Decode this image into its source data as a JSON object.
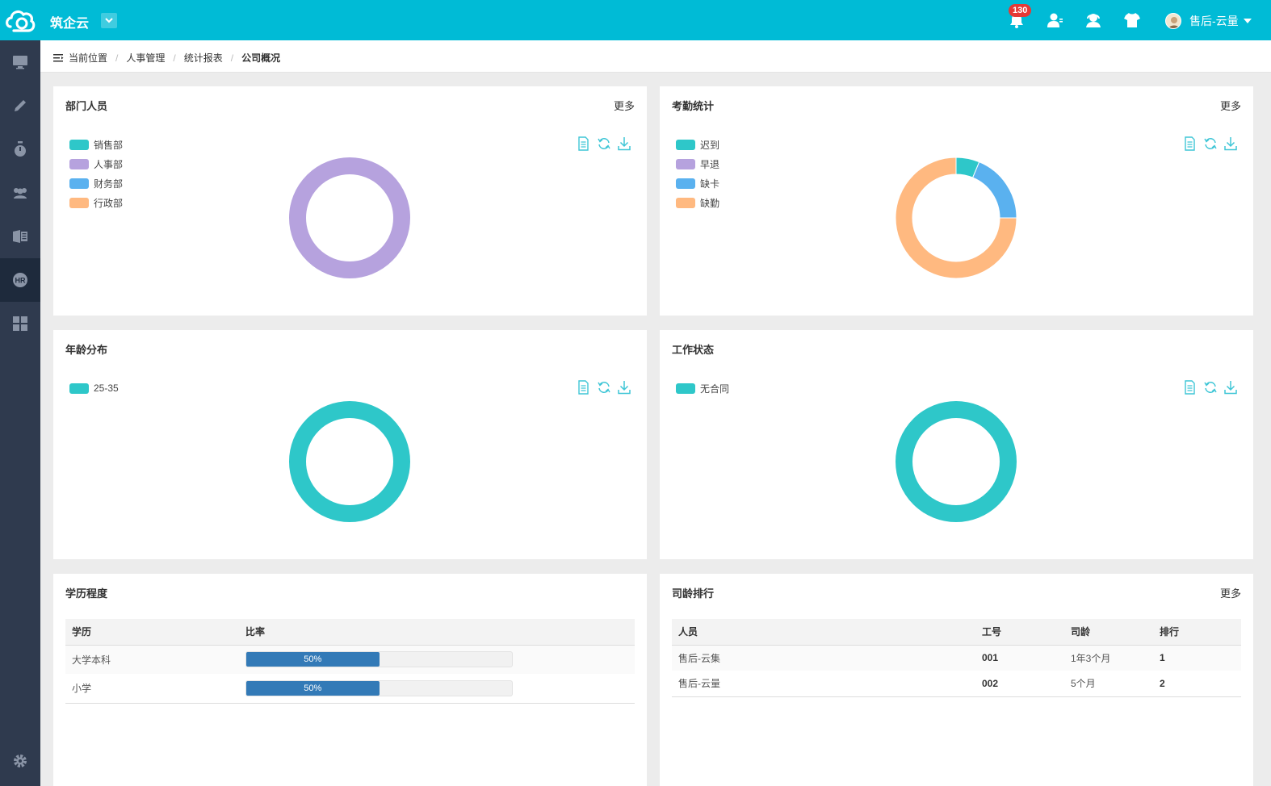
{
  "app": {
    "title": "筑企云"
  },
  "header": {
    "badge_count": "130",
    "user_name": "售后-云量"
  },
  "breadcrumb": {
    "label": "当前位置",
    "items": [
      "人事管理",
      "统计报表",
      "公司概况"
    ]
  },
  "panels": {
    "dept": {
      "title": "部门人员",
      "more": "更多"
    },
    "attendance": {
      "title": "考勤统计",
      "more": "更多"
    },
    "age": {
      "title": "年龄分布"
    },
    "work_status": {
      "title": "工作状态"
    },
    "education": {
      "title": "学历程度"
    },
    "seniority": {
      "title": "司龄排行",
      "more": "更多"
    }
  },
  "chart_data": [
    {
      "type": "pie",
      "variant": "donut",
      "title": "部门人员",
      "labels": [
        "销售部",
        "人事部",
        "财务部",
        "行政部"
      ],
      "colors": [
        "#2ec7c9",
        "#b6a2de",
        "#5ab1ef",
        "#ffb980"
      ],
      "values": [
        0,
        1,
        0,
        0
      ]
    },
    {
      "type": "pie",
      "variant": "donut",
      "title": "考勤统计",
      "labels": [
        "迟到",
        "早退",
        "缺卡",
        "缺勤"
      ],
      "colors": [
        "#2ec7c9",
        "#b6a2de",
        "#5ab1ef",
        "#ffb980"
      ],
      "values": [
        1,
        0,
        3,
        12
      ]
    },
    {
      "type": "pie",
      "variant": "donut",
      "title": "年龄分布",
      "labels": [
        "25-35"
      ],
      "colors": [
        "#2ec7c9"
      ],
      "values": [
        1
      ]
    },
    {
      "type": "pie",
      "variant": "donut",
      "title": "工作状态",
      "labels": [
        "无合同"
      ],
      "colors": [
        "#2ec7c9"
      ],
      "values": [
        1
      ]
    }
  ],
  "education_table": {
    "headers": [
      "学历",
      "比率"
    ],
    "rows": [
      {
        "name": "大学本科",
        "percent": 50,
        "label": "50%"
      },
      {
        "name": "小学",
        "percent": 50,
        "label": "50%"
      }
    ]
  },
  "seniority_table": {
    "headers": [
      "人员",
      "工号",
      "司龄",
      "排行"
    ],
    "rows": [
      {
        "name": "售后-云集",
        "id": "001",
        "tenure": "1年3个月",
        "rank": "1"
      },
      {
        "name": "售后-云量",
        "id": "002",
        "tenure": "5个月",
        "rank": "2"
      }
    ]
  },
  "icons": {
    "sidebar": [
      "monitor-icon",
      "pencil-icon",
      "stopwatch-icon",
      "users-icon",
      "office-icon",
      "hr-icon",
      "grid-icon",
      "settings-icon"
    ],
    "topbar": [
      "bell-icon",
      "user-icon",
      "support-icon",
      "shirt-icon"
    ],
    "chart_tools": [
      "data-view-icon",
      "refresh-icon",
      "download-icon"
    ]
  },
  "colors": {
    "header": "#00bbd6",
    "sidebar": "#2f3a4e",
    "progress": "#337ab7"
  }
}
